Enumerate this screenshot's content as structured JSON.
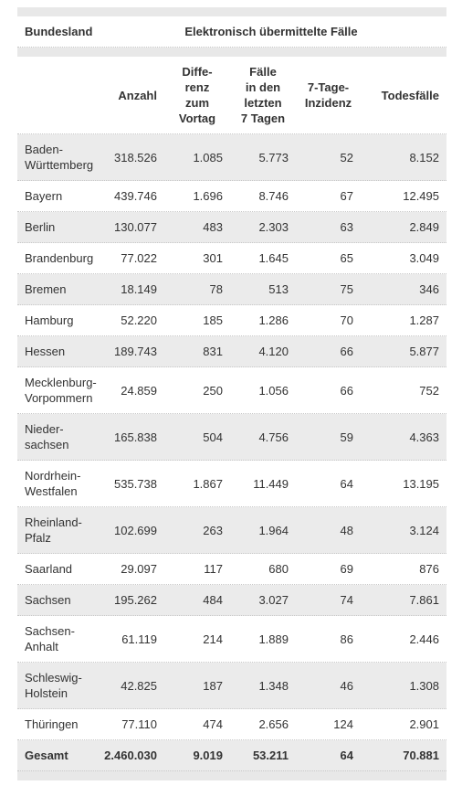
{
  "header": {
    "first": "Bundesland",
    "group": "Elektronisch übermittelte Fälle"
  },
  "columns": [
    "Anzahl",
    "Diffe-\nrenz\nzum\nVortag",
    "Fälle\nin den\nletzten\n7 Tagen",
    "7-Tage-\nInzidenz",
    "Todesfälle"
  ],
  "rows": [
    [
      "Baden-\nWürttemberg",
      "318.526",
      "1.085",
      "5.773",
      "52",
      "8.152"
    ],
    [
      "Bayern",
      "439.746",
      "1.696",
      "8.746",
      "67",
      "12.495"
    ],
    [
      "Berlin",
      "130.077",
      "483",
      "2.303",
      "63",
      "2.849"
    ],
    [
      "Brandenburg",
      "77.022",
      "301",
      "1.645",
      "65",
      "3.049"
    ],
    [
      "Bremen",
      "18.149",
      "78",
      "513",
      "75",
      "346"
    ],
    [
      "Hamburg",
      "52.220",
      "185",
      "1.286",
      "70",
      "1.287"
    ],
    [
      "Hessen",
      "189.743",
      "831",
      "4.120",
      "66",
      "5.877"
    ],
    [
      "Mecklenburg-\nVorpommern",
      "24.859",
      "250",
      "1.056",
      "66",
      "752"
    ],
    [
      "Nieder-\nsachsen",
      "165.838",
      "504",
      "4.756",
      "59",
      "4.363"
    ],
    [
      "Nordrhein-\nWestfalen",
      "535.738",
      "1.867",
      "11.449",
      "64",
      "13.195"
    ],
    [
      "Rheinland-\nPfalz",
      "102.699",
      "263",
      "1.964",
      "48",
      "3.124"
    ],
    [
      "Saarland",
      "29.097",
      "117",
      "680",
      "69",
      "876"
    ],
    [
      "Sachsen",
      "195.262",
      "484",
      "3.027",
      "74",
      "7.861"
    ],
    [
      "Sachsen-\nAnhalt",
      "61.119",
      "214",
      "1.889",
      "86",
      "2.446"
    ],
    [
      "Schleswig-\nHolstein",
      "42.825",
      "187",
      "1.348",
      "46",
      "1.308"
    ],
    [
      "Thüringen",
      "77.110",
      "474",
      "2.656",
      "124",
      "2.901"
    ]
  ],
  "total": [
    "Gesamt",
    "2.460.030",
    "9.019",
    "53.211",
    "64",
    "70.881"
  ]
}
